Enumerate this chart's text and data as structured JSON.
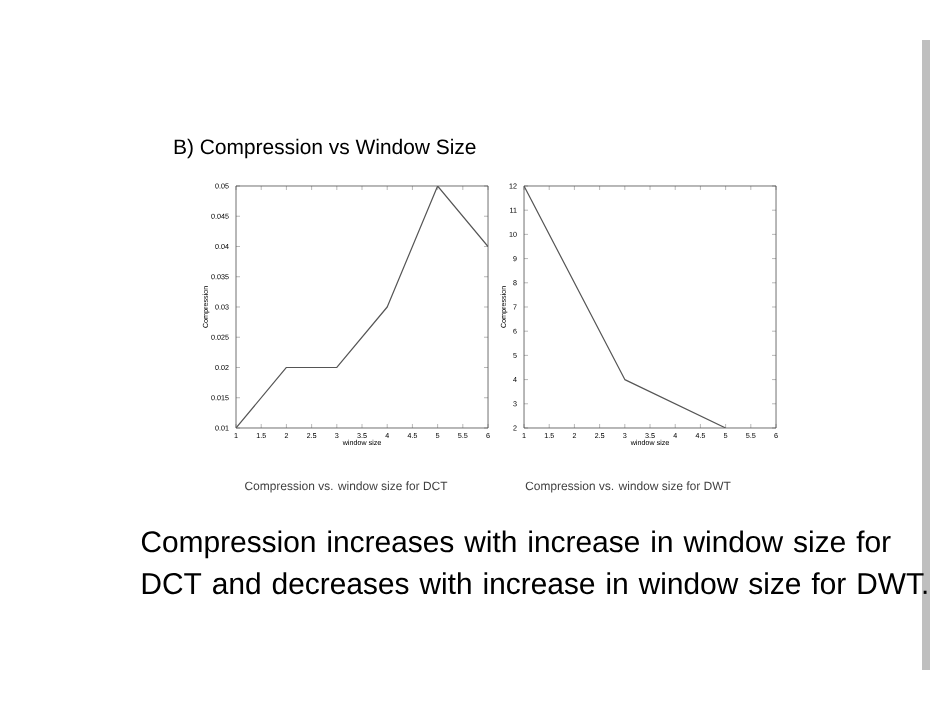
{
  "chart_data": [
    {
      "type": "line",
      "title": "B) Compression vs Window Size",
      "xlabel": "window size",
      "ylabel": "Compression",
      "x": [
        1,
        2,
        3,
        4,
        5,
        6
      ],
      "values": [
        0.01,
        0.02,
        0.02,
        0.03,
        0.05,
        0.04
      ],
      "color": "#555555",
      "xlim": [
        1,
        6
      ],
      "xticks": [
        1,
        1.5,
        2,
        2.5,
        3,
        3.5,
        4,
        4.5,
        5,
        5.5,
        6
      ],
      "ylim": [
        0.01,
        0.05
      ],
      "yticks": [
        0.01,
        0.015,
        0.02,
        0.025,
        0.03,
        0.035,
        0.04,
        0.045,
        0.05
      ],
      "grid": false,
      "marker": "none",
      "line_style": "solid",
      "annotations": [
        "Compression vs. window size for DCT"
      ]
    },
    {
      "type": "line",
      "xlabel": "window size",
      "ylabel": "Compression",
      "x": [
        1,
        3,
        5
      ],
      "values": [
        12,
        4,
        2
      ],
      "color": "#555555",
      "xlim": [
        1,
        6
      ],
      "xticks": [
        1,
        1.5,
        2,
        2.5,
        3,
        3.5,
        4,
        4.5,
        5,
        5.5,
        6
      ],
      "ylim": [
        2,
        12
      ],
      "yticks": [
        2,
        3,
        4,
        5,
        6,
        7,
        8,
        9,
        10,
        11,
        12
      ],
      "grid": false,
      "marker": "none",
      "line_style": "solid",
      "annotations": [
        "Compression vs. window size for DWT",
        "Compression increases with increase in window size for DCT and decreases with increase in window size for DWT."
      ]
    }
  ]
}
